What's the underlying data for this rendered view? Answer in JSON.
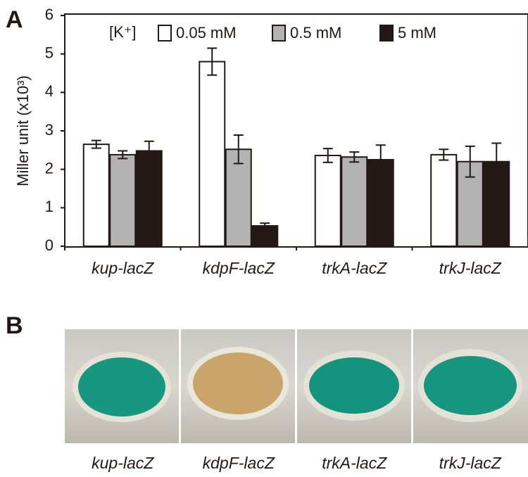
{
  "panel_a_label": "A",
  "chart_data": {
    "type": "bar",
    "y_label": "Miller unit (x10³)",
    "legend_title": "[K⁺]",
    "categories": [
      "kup-lacZ",
      "kdpF-lacZ",
      "trkA-lacZ",
      "trkJ-lacZ"
    ],
    "series": [
      {
        "name": "0.05 mM",
        "color": "#ffffff",
        "values": [
          2.65,
          4.8,
          2.36,
          2.38
        ],
        "errors": [
          0.1,
          0.35,
          0.18,
          0.14
        ]
      },
      {
        "name": "0.5 mM",
        "color": "#b3b3b3",
        "values": [
          2.38,
          2.52,
          2.32,
          2.2
        ],
        "errors": [
          0.1,
          0.37,
          0.13,
          0.4
        ]
      },
      {
        "name": "5 mM",
        "color": "#231815",
        "values": [
          2.48,
          0.53,
          2.25,
          2.2
        ],
        "errors": [
          0.25,
          0.07,
          0.38,
          0.48
        ]
      }
    ],
    "ylim": [
      0,
      6
    ],
    "yticks": [
      0,
      1,
      2,
      3,
      4,
      5,
      6
    ],
    "grid": false
  },
  "panel_b": {
    "label": "B",
    "images": [
      {
        "label": "kup-lacZ"
      },
      {
        "label": "kdpF-lacZ"
      },
      {
        "label": "trkA-lacZ"
      },
      {
        "label": "trkJ-lacZ"
      }
    ]
  }
}
